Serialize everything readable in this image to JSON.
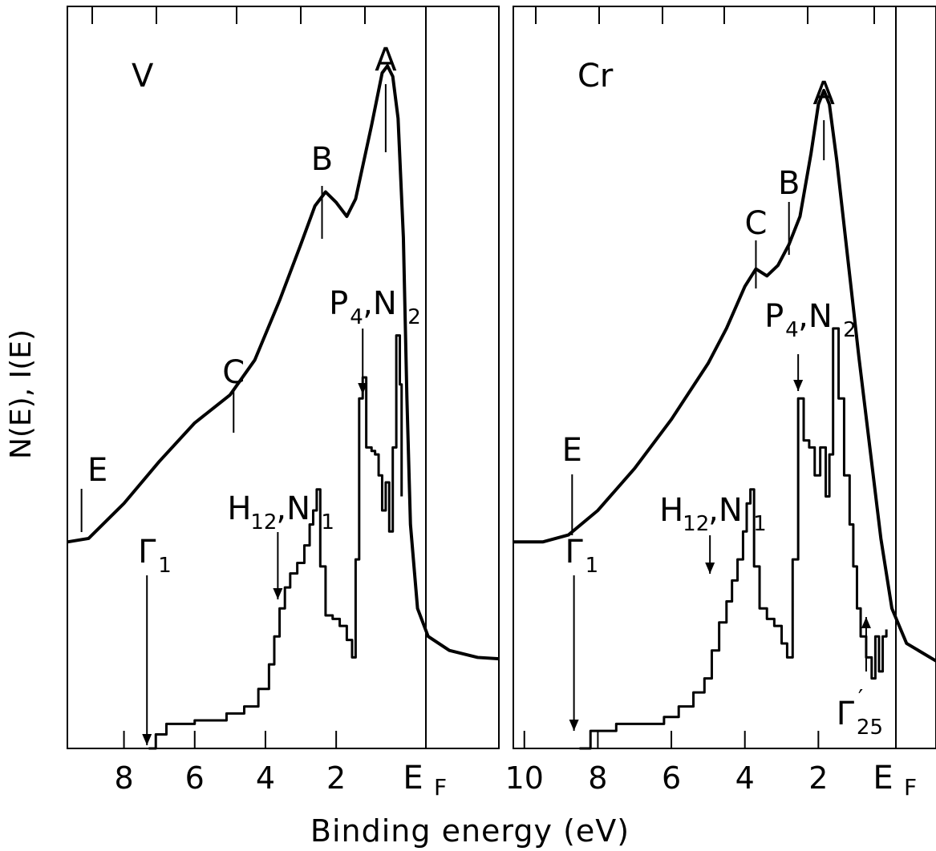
{
  "chart_data": [
    {
      "type": "line",
      "panel_label": "V",
      "ylabel": "N(E), I(E)",
      "xlabel": "Binding energy (eV)",
      "x_axis_reversed": true,
      "xlim": [
        9.6,
        -2.6
      ],
      "x_ticks": [
        8,
        6,
        4,
        2
      ],
      "x_tick_labels": [
        "8",
        "6",
        "4",
        "2"
      ],
      "fermi_label": "E",
      "fermi_subscript": "F",
      "fermi_level_eV": 0,
      "y_axis_ticks_unlabeled": true,
      "series": [
        {
          "role": "spectrum-curve",
          "points": [
            [
              9.6,
              2.95
            ],
            [
              9.0,
              3.0
            ],
            [
              8.0,
              3.5
            ],
            [
              7.0,
              4.1
            ],
            [
              6.0,
              4.65
            ],
            [
              5.0,
              5.05
            ],
            [
              4.3,
              5.55
            ],
            [
              3.6,
              6.4
            ],
            [
              3.0,
              7.2
            ],
            [
              2.6,
              7.75
            ],
            [
              2.3,
              7.95
            ],
            [
              2.0,
              7.8
            ],
            [
              1.7,
              7.6
            ],
            [
              1.45,
              7.85
            ],
            [
              1.0,
              8.9
            ],
            [
              0.7,
              9.65
            ],
            [
              0.55,
              9.75
            ],
            [
              0.4,
              9.6
            ],
            [
              0.25,
              9.0
            ],
            [
              0.1,
              7.3
            ],
            [
              0.0,
              5.0
            ],
            [
              -0.1,
              3.2
            ],
            [
              -0.3,
              2.0
            ],
            [
              -0.6,
              1.6
            ],
            [
              -1.2,
              1.4
            ],
            [
              -2.0,
              1.3
            ],
            [
              -2.6,
              1.28
            ]
          ]
        },
        {
          "role": "density-of-states-histogram",
          "points": [
            [
              7.3,
              0.0
            ],
            [
              7.1,
              0.2
            ],
            [
              6.8,
              0.35
            ],
            [
              6.0,
              0.4
            ],
            [
              5.1,
              0.5
            ],
            [
              4.6,
              0.6
            ],
            [
              4.2,
              0.85
            ],
            [
              3.9,
              1.2
            ],
            [
              3.75,
              1.6
            ],
            [
              3.6,
              2.0
            ],
            [
              3.45,
              2.3
            ],
            [
              3.3,
              2.5
            ],
            [
              3.1,
              2.65
            ],
            [
              2.9,
              2.9
            ],
            [
              2.75,
              3.2
            ],
            [
              2.65,
              3.4
            ],
            [
              2.55,
              3.7
            ],
            [
              2.45,
              2.6
            ],
            [
              2.3,
              1.9
            ],
            [
              2.1,
              1.85
            ],
            [
              1.9,
              1.75
            ],
            [
              1.7,
              1.55
            ],
            [
              1.55,
              1.3
            ],
            [
              1.45,
              2.7
            ],
            [
              1.35,
              5.0
            ],
            [
              1.25,
              5.3
            ],
            [
              1.15,
              4.3
            ],
            [
              1.0,
              4.25
            ],
            [
              0.9,
              4.2
            ],
            [
              0.8,
              3.9
            ],
            [
              0.7,
              3.4
            ],
            [
              0.6,
              3.8
            ],
            [
              0.5,
              3.1
            ],
            [
              0.4,
              4.3
            ],
            [
              0.3,
              5.9
            ],
            [
              0.2,
              5.2
            ],
            [
              0.15,
              3.6
            ]
          ]
        }
      ],
      "annotations": [
        {
          "text": "A",
          "x": 0.6
        },
        {
          "text": "B",
          "x": 2.4
        },
        {
          "text": "C",
          "x": 4.9
        },
        {
          "text": "E",
          "x": 9.2
        },
        {
          "text": "P",
          "sub": "4",
          "text2": ",N",
          "sub2": "2",
          "x": 1.25
        },
        {
          "text": "H",
          "sub": "12",
          "text2": ",N",
          "sub2": "1",
          "x": 3.65
        },
        {
          "text": "Γ",
          "sub": "1",
          "x": 7.35
        }
      ]
    },
    {
      "type": "line",
      "panel_label": "Cr",
      "x_axis_reversed": true,
      "xlim": [
        10.3,
        -1.2
      ],
      "x_ticks": [
        10,
        8,
        6,
        4,
        2
      ],
      "x_tick_labels": [
        "10",
        "8",
        "6",
        "4",
        "2"
      ],
      "fermi_label": "E",
      "fermi_subscript": "F",
      "fermi_level_eV": 0,
      "y_axis_ticks_unlabeled": true,
      "series": [
        {
          "role": "spectrum-curve",
          "points": [
            [
              10.3,
              2.95
            ],
            [
              9.5,
              2.95
            ],
            [
              8.8,
              3.05
            ],
            [
              8.0,
              3.4
            ],
            [
              7.0,
              4.0
            ],
            [
              6.0,
              4.7
            ],
            [
              5.0,
              5.5
            ],
            [
              4.5,
              6.0
            ],
            [
              4.0,
              6.6
            ],
            [
              3.7,
              6.85
            ],
            [
              3.4,
              6.75
            ],
            [
              3.1,
              6.9
            ],
            [
              2.8,
              7.2
            ],
            [
              2.5,
              7.6
            ],
            [
              2.2,
              8.5
            ],
            [
              2.0,
              9.2
            ],
            [
              1.85,
              9.4
            ],
            [
              1.7,
              9.2
            ],
            [
              1.5,
              8.4
            ],
            [
              1.2,
              7.0
            ],
            [
              0.9,
              5.6
            ],
            [
              0.6,
              4.3
            ],
            [
              0.3,
              3.0
            ],
            [
              0.0,
              2.0
            ],
            [
              -0.4,
              1.5
            ],
            [
              -1.2,
              1.25
            ]
          ]
        },
        {
          "role": "density-of-states-histogram",
          "points": [
            [
              8.5,
              0.0
            ],
            [
              8.2,
              0.25
            ],
            [
              7.5,
              0.35
            ],
            [
              6.2,
              0.45
            ],
            [
              5.8,
              0.6
            ],
            [
              5.4,
              0.8
            ],
            [
              5.1,
              1.0
            ],
            [
              4.9,
              1.4
            ],
            [
              4.7,
              1.8
            ],
            [
              4.5,
              2.1
            ],
            [
              4.35,
              2.4
            ],
            [
              4.2,
              2.7
            ],
            [
              4.05,
              3.1
            ],
            [
              3.95,
              3.5
            ],
            [
              3.85,
              3.7
            ],
            [
              3.75,
              2.6
            ],
            [
              3.6,
              2.0
            ],
            [
              3.4,
              1.85
            ],
            [
              3.2,
              1.75
            ],
            [
              3.0,
              1.5
            ],
            [
              2.85,
              1.3
            ],
            [
              2.7,
              2.7
            ],
            [
              2.55,
              5.0
            ],
            [
              2.4,
              4.4
            ],
            [
              2.25,
              4.3
            ],
            [
              2.1,
              3.9
            ],
            [
              1.95,
              4.3
            ],
            [
              1.8,
              3.6
            ],
            [
              1.7,
              4.2
            ],
            [
              1.6,
              6.0
            ],
            [
              1.45,
              5.0
            ],
            [
              1.3,
              3.9
            ],
            [
              1.15,
              3.2
            ],
            [
              1.05,
              2.6
            ],
            [
              0.95,
              2.0
            ],
            [
              0.85,
              1.6
            ],
            [
              0.7,
              1.3
            ],
            [
              0.55,
              1.0
            ],
            [
              0.45,
              1.6
            ],
            [
              0.35,
              1.1
            ],
            [
              0.25,
              1.6
            ],
            [
              0.15,
              1.7
            ]
          ]
        }
      ],
      "annotations": [
        {
          "text": "A",
          "x": 1.85
        },
        {
          "text": "B",
          "x": 2.8
        },
        {
          "text": "C",
          "x": 3.7
        },
        {
          "text": "E",
          "x": 8.7
        },
        {
          "text": "P",
          "sub": "4",
          "text2": ",N",
          "sub2": "2",
          "x": 2.55
        },
        {
          "text": "H",
          "sub": "12",
          "text2": ",N",
          "sub2": "1",
          "x": 4.95
        },
        {
          "text": "Γ",
          "sub": "1",
          "x": 8.65
        },
        {
          "text": "Γ",
          "sub": "25",
          "sup": "′",
          "x": 0.7
        }
      ]
    }
  ]
}
